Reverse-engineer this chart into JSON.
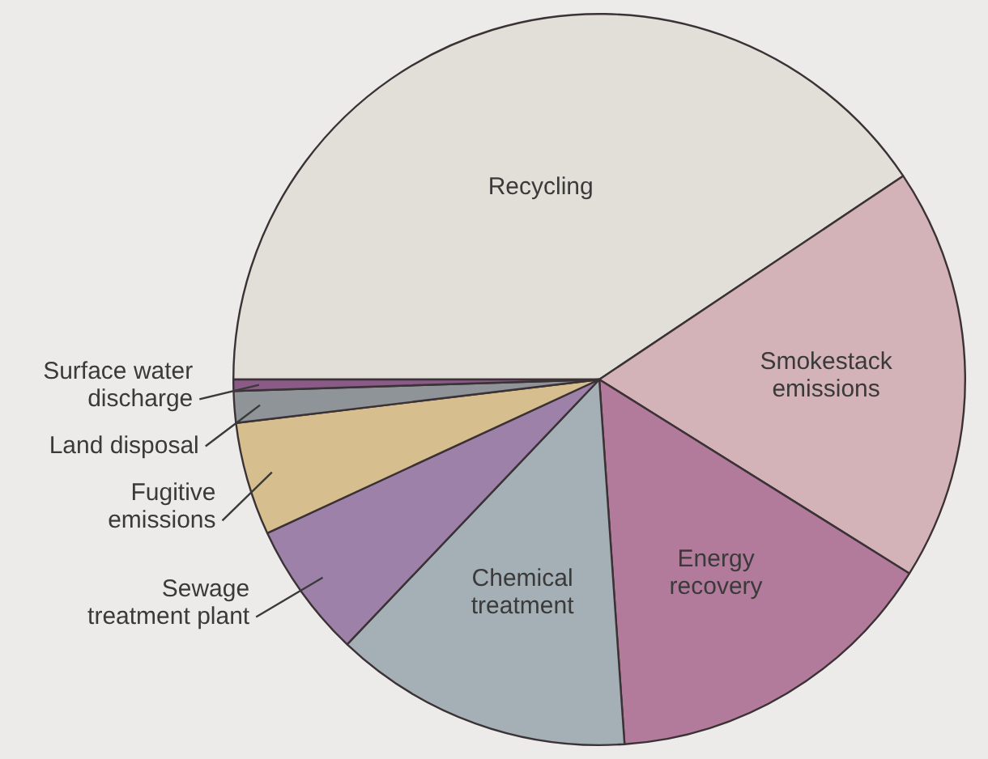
{
  "chart_data": {
    "type": "pie",
    "categories": [
      "Recycling",
      "Smokestack emissions",
      "Energy recovery",
      "Chemical treatment",
      "Sewage treatment plant",
      "Fugitive emissions",
      "Land disposal",
      "Surface water discharge"
    ],
    "values": [
      40.6,
      18.3,
      15.0,
      13.2,
      6.0,
      5.0,
      1.4,
      0.5
    ],
    "colors": [
      "#e2dfd9",
      "#d3b3b7",
      "#b37b9b",
      "#a4afb6",
      "#9d81a9",
      "#d6be8f",
      "#8f9499",
      "#8a5b87"
    ],
    "legend": false
  }
}
